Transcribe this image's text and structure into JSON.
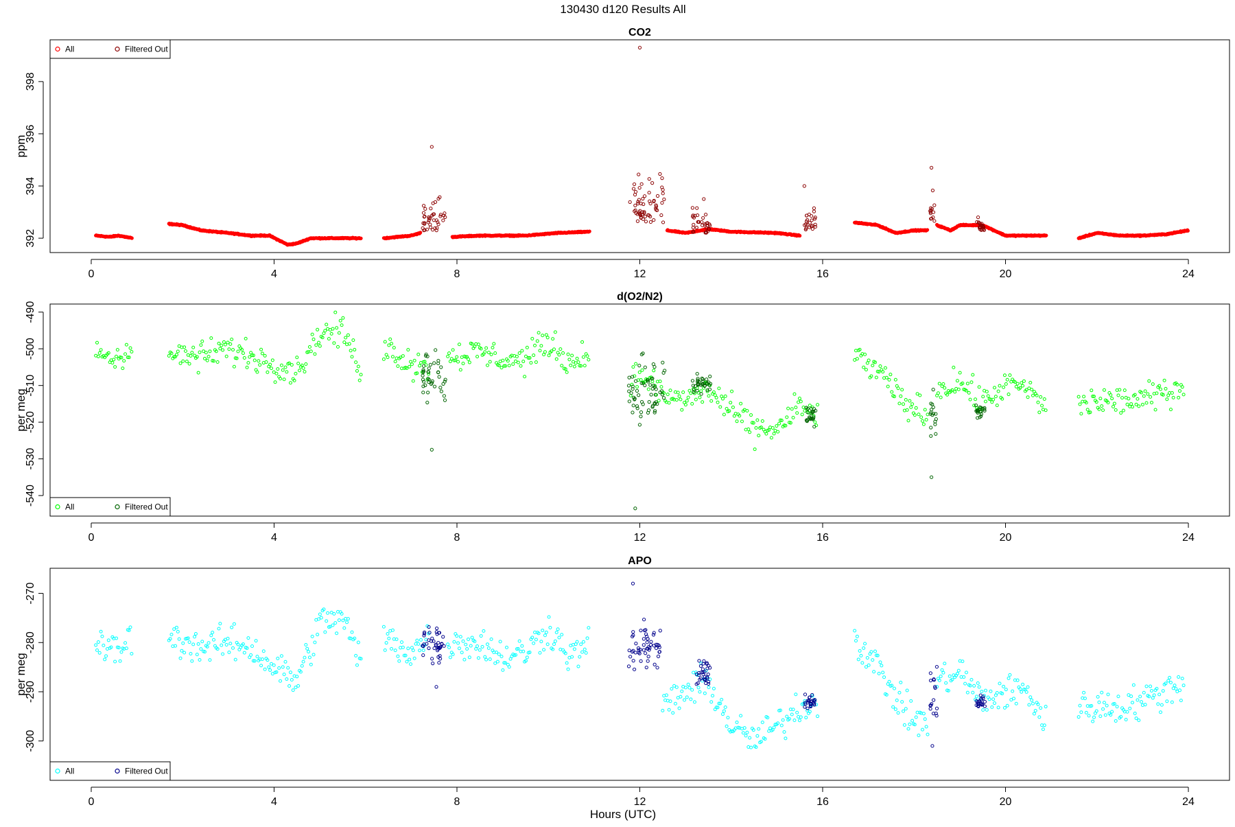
{
  "page": {
    "title": "130430   d120   Results All",
    "xlabel": "Hours (UTC)"
  },
  "colors": {
    "co2_all": "#ff0000",
    "co2_filtered": "#8b0000",
    "o2_all": "#00ff00",
    "o2_filtered": "#006400",
    "apo_all": "#00ffff",
    "apo_filtered": "#00008b"
  },
  "chart_data": [
    {
      "type": "scatter",
      "title": "CO2",
      "ylabel": "ppm",
      "xlim": [
        -0.9,
        24.9
      ],
      "ylim": [
        391.45,
        399.6
      ],
      "xticks": [
        0,
        4,
        8,
        12,
        16,
        20,
        24
      ],
      "yticks": [
        392,
        394,
        396,
        398
      ],
      "legend": {
        "position": "top-left",
        "entries": [
          "All",
          "Filtered Out"
        ]
      },
      "series": [
        {
          "name": "All",
          "color": "#ff0000",
          "generated": "smooth",
          "segments": [
            {
              "x": [
                0.1,
                0.4,
                0.6,
                0.9
              ],
              "y": [
                392.1,
                392.05,
                392.1,
                392.0
              ]
            },
            {
              "x": [
                1.7,
                2.0,
                2.4,
                3.0,
                3.5,
                3.9,
                4.3,
                4.5,
                4.8,
                5.2,
                5.9
              ],
              "y": [
                392.55,
                392.5,
                392.3,
                392.2,
                392.1,
                392.1,
                391.75,
                391.8,
                392.0,
                392.0,
                392.0
              ]
            },
            {
              "x": [
                6.4,
                7.0,
                7.2
              ],
              "y": [
                392.0,
                392.1,
                392.2
              ]
            },
            {
              "x": [
                7.9,
                8.5,
                9.5,
                10.2,
                10.9
              ],
              "y": [
                392.05,
                392.1,
                392.1,
                392.2,
                392.25
              ]
            },
            {
              "x": [
                12.6,
                13.0,
                13.5,
                14.0,
                15.0,
                15.5
              ],
              "y": [
                392.3,
                392.2,
                392.35,
                392.25,
                392.2,
                392.1
              ]
            },
            {
              "x": [
                16.7,
                17.2,
                17.6,
                18.0,
                18.3
              ],
              "y": [
                392.6,
                392.5,
                392.2,
                392.3,
                392.3
              ]
            },
            {
              "x": [
                18.5,
                18.8,
                19.0,
                19.5,
                20.0,
                20.5,
                20.9
              ],
              "y": [
                392.5,
                392.3,
                392.5,
                392.5,
                392.1,
                392.1,
                392.1
              ]
            },
            {
              "x": [
                21.6,
                22.0,
                22.5,
                23.0,
                23.5,
                24.0
              ],
              "y": [
                392.0,
                392.2,
                392.1,
                392.1,
                392.15,
                392.3
              ]
            }
          ]
        },
        {
          "name": "Filtered Out",
          "color": "#8b0000",
          "generated": "burst",
          "segments": [
            {
              "x": [
                7.25,
                7.75
              ],
              "base": 392.3,
              "spread": 1.9,
              "peak": [
                7.45,
                395.5
              ]
            },
            {
              "x": [
                11.75,
                12.55
              ],
              "base": 392.6,
              "spread": 2.3,
              "peak": [
                12.0,
                399.3
              ]
            },
            {
              "x": [
                13.15,
                13.55
              ],
              "base": 392.2,
              "spread": 1.3,
              "peak": [
                13.4,
                393.5
              ]
            },
            {
              "x": [
                15.6,
                15.85
              ],
              "base": 392.3,
              "spread": 1.4,
              "peak": [
                15.6,
                394.0
              ]
            },
            {
              "x": [
                18.35,
                18.45
              ],
              "base": 392.6,
              "spread": 1.5,
              "peak": [
                18.38,
                394.7
              ]
            },
            {
              "x": [
                19.35,
                19.55
              ],
              "base": 392.3,
              "spread": 0.5,
              "peak": [
                19.4,
                392.8
              ]
            }
          ]
        }
      ]
    },
    {
      "type": "scatter",
      "title": "d(O2/N2)",
      "ylabel": "per meg",
      "xlim": [
        -0.9,
        24.9
      ],
      "ylim": [
        -545.6,
        -487.8
      ],
      "xticks": [
        0,
        4,
        8,
        12,
        16,
        20,
        24
      ],
      "yticks": [
        -540,
        -530,
        -520,
        -510,
        -500,
        -490
      ],
      "legend": {
        "position": "bottom-left",
        "entries": [
          "All",
          "Filtered Out"
        ]
      },
      "series": [
        {
          "name": "All",
          "color": "#00ff00",
          "generated": "noisy",
          "segments": [
            {
              "x": [
                0.1,
                0.5,
                0.9
              ],
              "y": [
                -500,
                -503,
                -499
              ]
            },
            {
              "x": [
                1.7,
                2.5,
                3.0,
                3.5,
                4.0,
                4.5,
                5.0,
                5.5,
                5.9
              ],
              "y": [
                -502,
                -502,
                -500,
                -502,
                -504,
                -506,
                -496,
                -495,
                -506
              ]
            },
            {
              "x": [
                6.4,
                7.0,
                7.4
              ],
              "y": [
                -499,
                -504,
                -505
              ]
            },
            {
              "x": [
                7.8,
                8.5,
                9.0,
                9.5,
                10.0,
                10.5,
                10.9
              ],
              "y": [
                -502,
                -501,
                -503,
                -503,
                -498,
                -504,
                -501
              ]
            },
            {
              "x": [
                11.8,
                12.2,
                12.5,
                13.0,
                13.5,
                14.0,
                14.5,
                15.0,
                15.5,
                15.9
              ],
              "y": [
                -508,
                -508,
                -513,
                -514,
                -511,
                -517,
                -522,
                -522,
                -516,
                -518
              ]
            },
            {
              "x": [
                16.7,
                17.2,
                17.8,
                18.3
              ],
              "y": [
                -502,
                -506,
                -515,
                -518
              ]
            },
            {
              "x": [
                18.5,
                19.0,
                19.5,
                20.0,
                20.5,
                20.9
              ],
              "y": [
                -511,
                -509,
                -515,
                -510,
                -511,
                -517
              ]
            },
            {
              "x": [
                21.6,
                22.5,
                23.0,
                23.9
              ],
              "y": [
                -515,
                -514,
                -514,
                -510
              ]
            }
          ]
        },
        {
          "name": "Filtered Out",
          "color": "#006400",
          "generated": "burst",
          "segments": [
            {
              "x": [
                7.25,
                7.75
              ],
              "base": -508,
              "spread": 10,
              "peak": [
                7.45,
                -527.5
              ]
            },
            {
              "x": [
                11.75,
                12.55
              ],
              "base": -510,
              "spread": 12,
              "peak": [
                11.9,
                -543.5
              ]
            },
            {
              "x": [
                13.15,
                13.55
              ],
              "base": -510,
              "spread": 4
            },
            {
              "x": [
                15.6,
                15.85
              ],
              "base": -518,
              "spread": 4
            },
            {
              "x": [
                18.35,
                18.5
              ],
              "base": -518,
              "spread": 8,
              "peak": [
                18.38,
                -535
              ]
            },
            {
              "x": [
                19.35,
                19.55
              ],
              "base": -517,
              "spread": 3
            }
          ]
        }
      ]
    },
    {
      "type": "scatter",
      "title": "APO",
      "ylabel": "per meg",
      "xlim": [
        -0.9,
        24.9
      ],
      "ylim": [
        -308.0,
        -264.9
      ],
      "xticks": [
        0,
        4,
        8,
        12,
        16,
        20,
        24
      ],
      "yticks": [
        -300,
        -290,
        -280,
        -270
      ],
      "legend": {
        "position": "bottom-left",
        "entries": [
          "All",
          "Filtered Out"
        ]
      },
      "series": [
        {
          "name": "All",
          "color": "#00ffff",
          "generated": "noisy",
          "segments": [
            {
              "x": [
                0.1,
                0.5,
                0.9
              ],
              "y": [
                -280,
                -282,
                -279
              ]
            },
            {
              "x": [
                1.7,
                2.5,
                3.0,
                3.5,
                4.0,
                4.5,
                5.0,
                5.5,
                5.9
              ],
              "y": [
                -279,
                -281,
                -280,
                -281,
                -285,
                -288,
                -276,
                -275,
                -284
              ]
            },
            {
              "x": [
                6.4,
                7.0,
                7.4
              ],
              "y": [
                -279,
                -282,
                -279
              ]
            },
            {
              "x": [
                7.8,
                8.5,
                9.0,
                9.5,
                10.0,
                10.5,
                10.9
              ],
              "y": [
                -280,
                -280,
                -283,
                -282,
                -277,
                -283,
                -280
              ]
            },
            {
              "x": [
                12.5,
                13.0,
                13.5,
                14.0,
                14.5,
                15.0,
                15.5,
                15.9
              ],
              "y": [
                -293,
                -290,
                -288,
                -297,
                -300,
                -297,
                -293,
                -292
              ]
            },
            {
              "x": [
                16.7,
                17.2,
                17.8,
                18.3
              ],
              "y": [
                -279,
                -285,
                -294,
                -297
              ]
            },
            {
              "x": [
                18.5,
                19.0,
                19.5,
                20.0,
                20.5,
                20.9
              ],
              "y": [
                -288,
                -286,
                -292,
                -290,
                -290,
                -297
              ]
            },
            {
              "x": [
                21.6,
                22.5,
                23.0,
                23.9
              ],
              "y": [
                -293,
                -293,
                -292,
                -288
              ]
            }
          ]
        },
        {
          "name": "Filtered Out",
          "color": "#00008b",
          "generated": "burst",
          "segments": [
            {
              "x": [
                7.25,
                7.75
              ],
              "base": -280,
              "spread": 6,
              "peak": [
                7.55,
                -289
              ]
            },
            {
              "x": [
                11.75,
                12.45
              ],
              "base": -281,
              "spread": 7,
              "peak": [
                11.85,
                -268
              ]
            },
            {
              "x": [
                13.2,
                13.55
              ],
              "base": -286,
              "spread": 4
            },
            {
              "x": [
                15.6,
                15.85
              ],
              "base": -292,
              "spread": 3
            },
            {
              "x": [
                18.35,
                18.5
              ],
              "base": -291,
              "spread": 7,
              "peak": [
                18.4,
                -301
              ]
            },
            {
              "x": [
                19.35,
                19.55
              ],
              "base": -292,
              "spread": 2
            }
          ]
        }
      ]
    }
  ]
}
